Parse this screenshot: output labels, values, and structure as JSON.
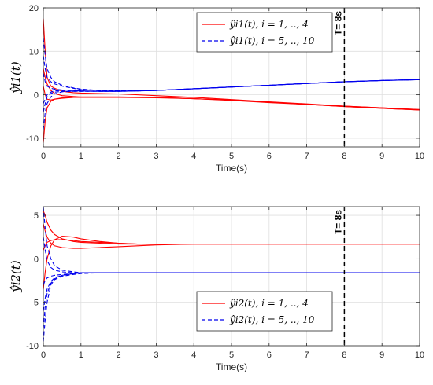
{
  "chart_data": [
    {
      "type": "line",
      "ylabel": "ŷi1(t)",
      "xlabel": "Time(s)",
      "xlim": [
        0,
        10
      ],
      "ylim": [
        -12,
        20
      ],
      "xticks": [
        0,
        1,
        2,
        3,
        4,
        5,
        6,
        7,
        8,
        9,
        10
      ],
      "yticks": [
        -10,
        0,
        10,
        20
      ],
      "grid": true,
      "legend_position": "top-right",
      "annotation": {
        "text": "T= 8s",
        "x": 8
      },
      "series": [
        {
          "name": "ŷi1(t), i = 1, .., 4",
          "color": "#ff0000",
          "dash": "solid",
          "curves": [
            {
              "x": [
                0,
                0.05,
                0.1,
                0.2,
                0.3,
                0.5,
                0.8,
                1,
                1.5,
                2,
                3,
                4,
                5,
                6,
                7,
                8,
                9,
                10
              ],
              "y": [
                17.5,
                10,
                4,
                2,
                1.5,
                0.8,
                0.5,
                0.4,
                0.3,
                0.2,
                -0.2,
                -0.6,
                -1.1,
                -1.6,
                -2.1,
                -2.6,
                -3,
                -3.4
              ]
            },
            {
              "x": [
                0,
                0.05,
                0.1,
                0.2,
                0.3,
                0.5,
                0.8,
                1,
                1.5,
                2,
                3,
                4,
                5,
                6,
                7,
                8,
                9,
                10
              ],
              "y": [
                -11,
                -6,
                -3,
                -1.5,
                -1,
                -0.7,
                -0.6,
                -0.6,
                -0.6,
                -0.6,
                -0.7,
                -0.9,
                -1.2,
                -1.7,
                -2.2,
                -2.7,
                -3.1,
                -3.5
              ]
            },
            {
              "x": [
                0,
                0.05,
                0.1,
                0.2,
                0.3,
                0.5,
                0.8,
                1,
                1.5,
                2,
                3,
                4,
                5,
                6,
                7,
                8,
                9,
                10
              ],
              "y": [
                2,
                0,
                -1,
                -1.2,
                -1,
                -0.8,
                -0.6,
                -0.5,
                -0.5,
                -0.5,
                -0.6,
                -0.9,
                -1.3,
                -1.8,
                -2.2,
                -2.7,
                -3.1,
                -3.5
              ]
            },
            {
              "x": [
                0,
                0.05,
                0.1,
                0.2,
                0.3,
                0.5,
                0.8,
                1,
                1.5,
                2,
                3,
                4,
                5,
                6,
                7,
                8,
                9,
                10
              ],
              "y": [
                6,
                4,
                2.5,
                1,
                0.3,
                -0.2,
                -0.4,
                -0.5,
                -0.5,
                -0.5,
                -0.6,
                -0.9,
                -1.2,
                -1.7,
                -2.2,
                -2.6,
                -3,
                -3.4
              ]
            }
          ]
        },
        {
          "name": "ŷi1(t), i = 5, .., 10",
          "color": "#0000ee",
          "dash": "5,3",
          "curves": [
            {
              "x": [
                0,
                0.05,
                0.1,
                0.2,
                0.3,
                0.5,
                0.8,
                1,
                1.5,
                2,
                3,
                4,
                5,
                6,
                7,
                8,
                9,
                10
              ],
              "y": [
                13,
                9,
                6,
                4,
                3,
                2.2,
                1.6,
                1.3,
                1,
                0.9,
                1,
                1.4,
                1.8,
                2.2,
                2.6,
                3,
                3.3,
                3.5
              ]
            },
            {
              "x": [
                0,
                0.05,
                0.1,
                0.2,
                0.3,
                0.5,
                0.8,
                1,
                1.5,
                2,
                3,
                4,
                5,
                6,
                7,
                8,
                9,
                10
              ],
              "y": [
                9,
                6,
                4,
                3,
                2.5,
                2,
                1.5,
                1.2,
                1,
                0.9,
                1,
                1.4,
                1.8,
                2.2,
                2.6,
                3,
                3.3,
                3.5
              ]
            },
            {
              "x": [
                0,
                0.05,
                0.1,
                0.2,
                0.3,
                0.5,
                0.8,
                1,
                1.5,
                2,
                3,
                4,
                5,
                6,
                7,
                8,
                9,
                10
              ],
              "y": [
                -8,
                -4,
                -2,
                -0.5,
                0.2,
                0.7,
                0.8,
                0.8,
                0.8,
                0.8,
                1,
                1.4,
                1.8,
                2.2,
                2.6,
                3,
                3.3,
                3.5
              ]
            },
            {
              "x": [
                0,
                0.05,
                0.1,
                0.2,
                0.3,
                0.5,
                0.8,
                1,
                1.5,
                2,
                3,
                4,
                5,
                6,
                7,
                8,
                9,
                10
              ],
              "y": [
                -4,
                -2,
                -0.5,
                0.3,
                0.6,
                0.8,
                0.8,
                0.8,
                0.8,
                0.8,
                1,
                1.4,
                1.8,
                2.2,
                2.6,
                3,
                3.3,
                3.5
              ]
            },
            {
              "x": [
                0,
                0.05,
                0.1,
                0.2,
                0.3,
                0.5,
                0.8,
                1,
                1.5,
                2,
                3,
                4,
                5,
                6,
                7,
                8,
                9,
                10
              ],
              "y": [
                5,
                3,
                2,
                1.5,
                1.3,
                1.1,
                1,
                0.9,
                0.8,
                0.8,
                1,
                1.4,
                1.8,
                2.2,
                2.6,
                3,
                3.3,
                3.5
              ]
            },
            {
              "x": [
                0,
                0.05,
                0.1,
                0.2,
                0.3,
                0.5,
                0.8,
                1,
                1.5,
                2,
                3,
                4,
                5,
                6,
                7,
                8,
                9,
                10
              ],
              "y": [
                -2,
                -1,
                0,
                0.6,
                0.9,
                1,
                1,
                0.9,
                0.8,
                0.8,
                1,
                1.4,
                1.8,
                2.2,
                2.6,
                3,
                3.3,
                3.5
              ]
            }
          ]
        }
      ]
    },
    {
      "type": "line",
      "ylabel": "ŷi2(t)",
      "xlabel": "Time(s)",
      "xlim": [
        0,
        10
      ],
      "ylim": [
        -10,
        6
      ],
      "xticks": [
        0,
        1,
        2,
        3,
        4,
        5,
        6,
        7,
        8,
        9,
        10
      ],
      "yticks": [
        -10,
        -5,
        0,
        5
      ],
      "grid": true,
      "legend_position": "bottom-right",
      "annotation": {
        "text": "T= 8s",
        "x": 8
      },
      "series": [
        {
          "name": "ŷi2(t), i = 1, .., 4",
          "color": "#ff0000",
          "dash": "solid",
          "curves": [
            {
              "x": [
                0,
                0.05,
                0.1,
                0.2,
                0.3,
                0.5,
                0.8,
                1,
                1.5,
                2,
                2.5,
                3,
                4,
                5,
                6,
                7,
                8,
                9,
                10
              ],
              "y": [
                5.5,
                5,
                4.2,
                3.3,
                2.8,
                2.3,
                2,
                1.9,
                1.8,
                1.7,
                1.7,
                1.7,
                1.7,
                1.7,
                1.7,
                1.7,
                1.7,
                1.7,
                1.7
              ]
            },
            {
              "x": [
                0,
                0.05,
                0.1,
                0.2,
                0.3,
                0.5,
                0.8,
                1,
                1.5,
                2,
                2.5,
                3,
                4,
                5,
                6,
                7,
                8,
                9,
                10
              ],
              "y": [
                -3.5,
                -1.5,
                0,
                1.5,
                2.2,
                2.6,
                2.5,
                2.3,
                2,
                1.8,
                1.7,
                1.7,
                1.7,
                1.7,
                1.7,
                1.7,
                1.7,
                1.7,
                1.7
              ]
            },
            {
              "x": [
                0,
                0.05,
                0.1,
                0.2,
                0.3,
                0.5,
                0.8,
                1,
                1.5,
                2,
                2.5,
                3,
                4,
                5,
                6,
                7,
                8,
                9,
                10
              ],
              "y": [
                4,
                3.2,
                2.5,
                1.8,
                1.5,
                1.3,
                1.2,
                1.2,
                1.3,
                1.4,
                1.5,
                1.6,
                1.7,
                1.7,
                1.7,
                1.7,
                1.7,
                1.7,
                1.7
              ]
            },
            {
              "x": [
                0,
                0.05,
                0.1,
                0.2,
                0.3,
                0.5,
                0.8,
                1,
                1.5,
                2,
                2.5,
                3,
                4,
                5,
                6,
                7,
                8,
                9,
                10
              ],
              "y": [
                1,
                1.5,
                1.9,
                2.1,
                2.2,
                2.2,
                2.1,
                2,
                1.9,
                1.8,
                1.7,
                1.7,
                1.7,
                1.7,
                1.7,
                1.7,
                1.7,
                1.7,
                1.7
              ]
            }
          ]
        },
        {
          "name": "ŷi2(t), i = 5, .., 10",
          "color": "#0000ee",
          "dash": "5,3",
          "curves": [
            {
              "x": [
                0,
                0.05,
                0.1,
                0.2,
                0.3,
                0.5,
                0.8,
                1,
                1.5,
                2,
                3,
                4,
                5,
                6,
                7,
                8,
                9,
                10
              ],
              "y": [
                -9.5,
                -7,
                -5,
                -3,
                -2.4,
                -2,
                -1.8,
                -1.7,
                -1.6,
                -1.6,
                -1.6,
                -1.6,
                -1.6,
                -1.6,
                -1.6,
                -1.6,
                -1.6,
                -1.6
              ]
            },
            {
              "x": [
                0,
                0.05,
                0.1,
                0.2,
                0.3,
                0.5,
                0.8,
                1,
                1.5,
                2,
                3,
                4,
                5,
                6,
                7,
                8,
                9,
                10
              ],
              "y": [
                -8,
                -5.5,
                -4,
                -2.8,
                -2.3,
                -1.9,
                -1.7,
                -1.6,
                -1.6,
                -1.6,
                -1.6,
                -1.6,
                -1.6,
                -1.6,
                -1.6,
                -1.6,
                -1.6,
                -1.6
              ]
            },
            {
              "x": [
                0,
                0.05,
                0.1,
                0.2,
                0.3,
                0.5,
                0.8,
                1,
                1.5,
                2,
                3,
                4,
                5,
                6,
                7,
                8,
                9,
                10
              ],
              "y": [
                -6,
                -4.5,
                -3.5,
                -2.6,
                -2.2,
                -1.9,
                -1.7,
                -1.6,
                -1.6,
                -1.6,
                -1.6,
                -1.6,
                -1.6,
                -1.6,
                -1.6,
                -1.6,
                -1.6,
                -1.6
              ]
            },
            {
              "x": [
                0,
                0.05,
                0.1,
                0.2,
                0.3,
                0.5,
                0.8,
                1,
                1.5,
                2,
                3,
                4,
                5,
                6,
                7,
                8,
                9,
                10
              ],
              "y": [
                6,
                3.5,
                1.5,
                0,
                -0.8,
                -1.3,
                -1.5,
                -1.6,
                -1.6,
                -1.6,
                -1.6,
                -1.6,
                -1.6,
                -1.6,
                -1.6,
                -1.6,
                -1.6,
                -1.6
              ]
            },
            {
              "x": [
                0,
                0.05,
                0.1,
                0.2,
                0.3,
                0.5,
                0.8,
                1,
                1.5,
                2,
                3,
                4,
                5,
                6,
                7,
                8,
                9,
                10
              ],
              "y": [
                2.5,
                1,
                -0.2,
                -1,
                -1.3,
                -1.5,
                -1.6,
                -1.6,
                -1.6,
                -1.6,
                -1.6,
                -1.6,
                -1.6,
                -1.6,
                -1.6,
                -1.6,
                -1.6,
                -1.6
              ]
            },
            {
              "x": [
                0,
                0.05,
                0.1,
                0.2,
                0.3,
                0.5,
                0.8,
                1,
                1.5,
                2,
                3,
                4,
                5,
                6,
                7,
                8,
                9,
                10
              ],
              "y": [
                -3,
                -2.5,
                -2.2,
                -2,
                -1.9,
                -1.8,
                -1.7,
                -1.6,
                -1.6,
                -1.6,
                -1.6,
                -1.6,
                -1.6,
                -1.6,
                -1.6,
                -1.6,
                -1.6,
                -1.6
              ]
            }
          ]
        }
      ]
    }
  ]
}
